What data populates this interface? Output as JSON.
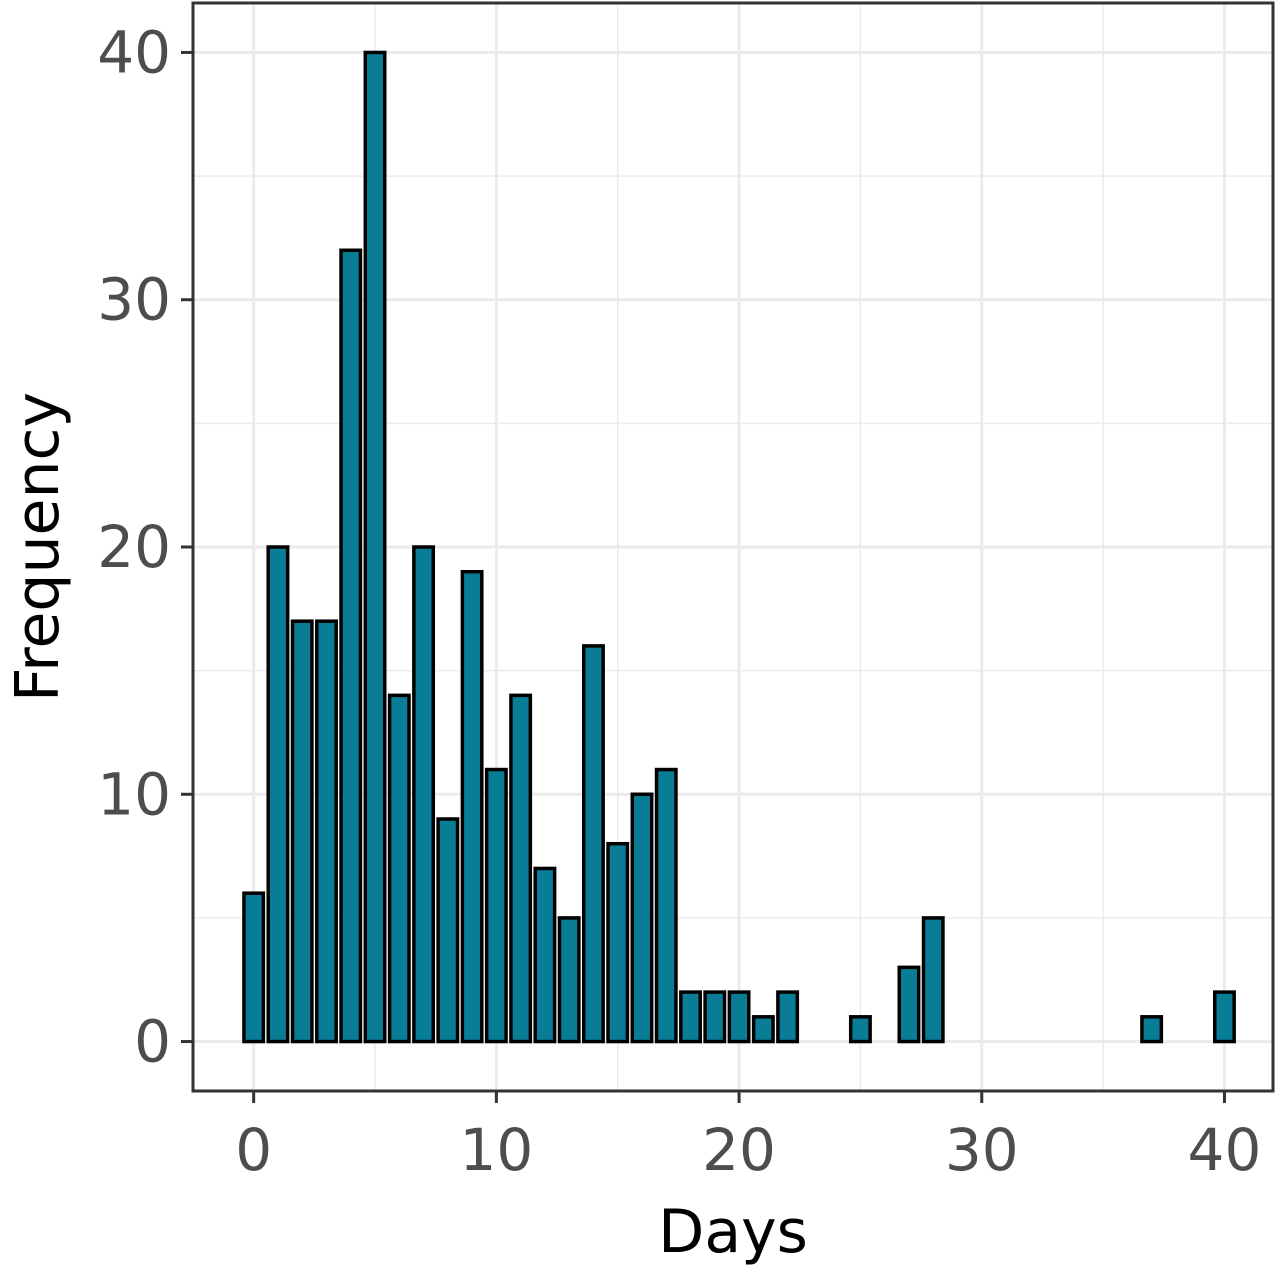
{
  "chart_data": {
    "type": "bar",
    "title": "",
    "xlabel": "Days",
    "ylabel": "Frequency",
    "xlim": [
      -2.5,
      42
    ],
    "ylim": [
      -2,
      42
    ],
    "x_ticks": [
      0,
      10,
      20,
      30,
      40
    ],
    "y_ticks": [
      0,
      10,
      20,
      30,
      40
    ],
    "grid": true,
    "colors": {
      "bar_fill": "#0a7d96",
      "bar_stroke": "#000000",
      "grid": "#ebebeb",
      "panel_border": "#333333"
    },
    "series": [
      {
        "x": [
          0,
          1,
          2,
          3,
          4,
          5,
          6,
          7,
          8,
          9,
          10,
          11,
          12,
          13,
          14,
          15,
          16,
          17,
          18,
          19,
          20,
          21,
          22,
          25,
          27,
          28,
          37,
          40
        ],
        "values": [
          6,
          20,
          17,
          17,
          32,
          40,
          14,
          20,
          9,
          19,
          11,
          14,
          7,
          5,
          16,
          8,
          10,
          11,
          2,
          2,
          2,
          1,
          2,
          1,
          3,
          5,
          1,
          2
        ]
      }
    ]
  }
}
